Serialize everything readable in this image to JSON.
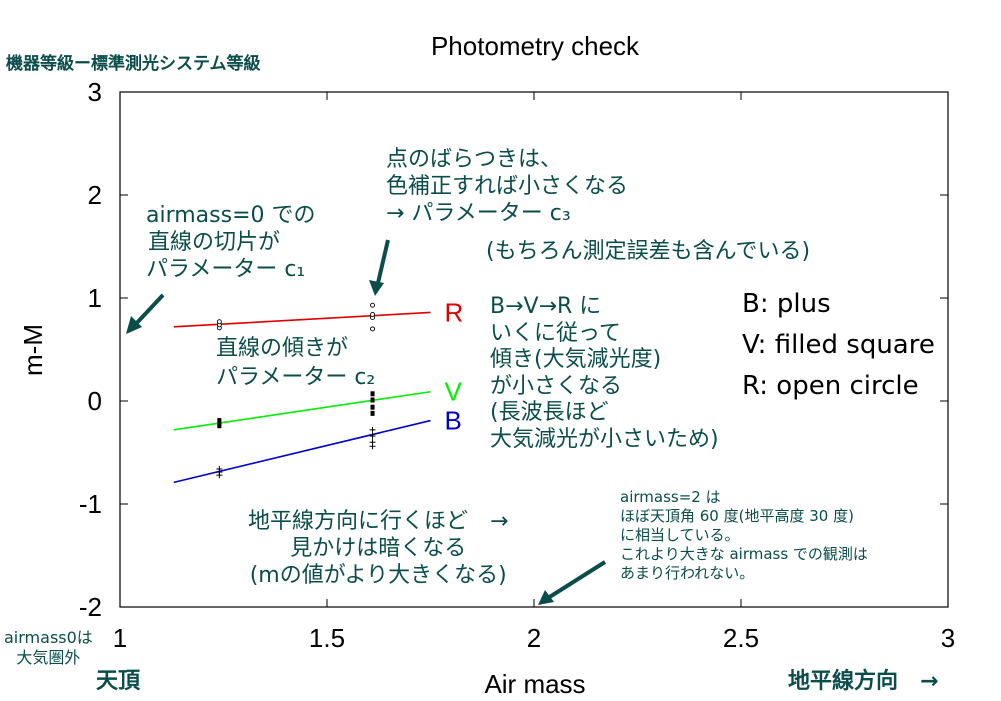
{
  "chart_data": {
    "type": "line",
    "title": "Photometry check",
    "xlabel": "Air mass",
    "ylabel": "m-M",
    "xlim": [
      1,
      3
    ],
    "ylim": [
      -2,
      3
    ],
    "x_ticks": [
      "1",
      "1.5",
      "2",
      "2.5",
      "3"
    ],
    "y_ticks": [
      "3",
      "2",
      "1",
      "0",
      "-1",
      "-2"
    ],
    "grid": false,
    "series": [
      {
        "name": "R",
        "color": "#e00000",
        "marker": "open-circle",
        "fit": {
          "x": [
            1.13,
            1.75
          ],
          "y": [
            0.72,
            0.86
          ]
        },
        "points": [
          {
            "x": 1.24,
            "y": 0.71
          },
          {
            "x": 1.24,
            "y": 0.74
          },
          {
            "x": 1.24,
            "y": 0.77
          },
          {
            "x": 1.61,
            "y": 0.7
          },
          {
            "x": 1.61,
            "y": 0.81
          },
          {
            "x": 1.61,
            "y": 0.84
          },
          {
            "x": 1.61,
            "y": 0.93
          }
        ]
      },
      {
        "name": "V",
        "color": "#00ee00",
        "marker": "filled-square",
        "fit": {
          "x": [
            1.13,
            1.75
          ],
          "y": [
            -0.28,
            0.09
          ]
        },
        "points": [
          {
            "x": 1.24,
            "y": -0.19
          },
          {
            "x": 1.24,
            "y": -0.22
          },
          {
            "x": 1.24,
            "y": -0.24
          },
          {
            "x": 1.61,
            "y": -0.12
          },
          {
            "x": 1.61,
            "y": -0.06
          },
          {
            "x": 1.61,
            "y": 0.01
          },
          {
            "x": 1.61,
            "y": 0.07
          }
        ]
      },
      {
        "name": "B",
        "color": "#0000cc",
        "marker": "plus",
        "fit": {
          "x": [
            1.13,
            1.75
          ],
          "y": [
            -0.79,
            -0.19
          ]
        },
        "points": [
          {
            "x": 1.24,
            "y": -0.66
          },
          {
            "x": 1.24,
            "y": -0.69
          },
          {
            "x": 1.24,
            "y": -0.72
          },
          {
            "x": 1.61,
            "y": -0.28
          },
          {
            "x": 1.61,
            "y": -0.34
          },
          {
            "x": 1.61,
            "y": -0.4
          },
          {
            "x": 1.61,
            "y": -0.44
          }
        ]
      }
    ],
    "legend": [
      "B: plus",
      "V: filled square",
      "R: open circle"
    ]
  },
  "annotations": {
    "top_left_label": "機器等級ー標準測光システム等級",
    "intercept": [
      "airmass=0 での",
      "直線の切片が",
      "パラメーター c₁"
    ],
    "slope": [
      "直線の傾きが",
      "パラメーター c₂"
    ],
    "scatter": [
      "点のばらつきは、",
      "色補正すれば小さくなる",
      "→ パラメーター c₃"
    ],
    "scatter_note": "(もちろん測定誤差も含んでいる)",
    "extinction": [
      "B→V→R に",
      "いくに従って",
      "傾き(大気減光度)",
      "が小さくなる",
      "(長波長ほど",
      "大気減光が小さいため)"
    ],
    "horizon_effect": [
      "地平線方向に行くほど　→",
      "見かけは暗くなる",
      "(mの値がより大きくなる)"
    ],
    "airmass2": [
      "airmass=2 は",
      "ほぼ天頂角 60 度(地平高度 30 度)",
      "に相当している。",
      "これより大きな airmass での観測は",
      "あまり行われない。"
    ],
    "airmass0": [
      "airmass0は",
      "大気圏外"
    ],
    "zenith": "天頂",
    "horizon": "地平線方向　→"
  },
  "colors": {
    "annotation": "#0b4d4a",
    "arrow": "#0b4d4a"
  }
}
